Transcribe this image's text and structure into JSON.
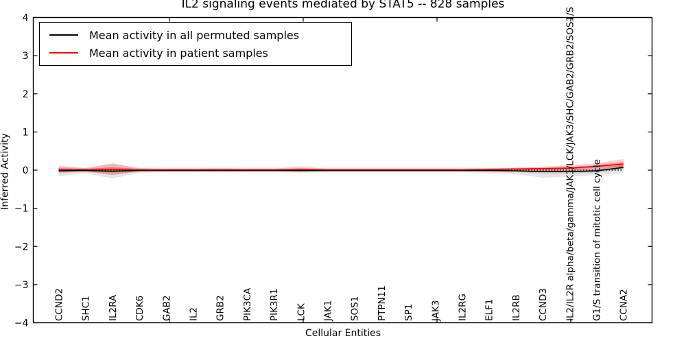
{
  "title": "IL2 signaling events mediated by STAT5 -- 828 samples",
  "axes": {
    "ylabel": "Inferred Activity",
    "xlabel": "Cellular Entities",
    "ytick_labels": [
      "4",
      "3",
      "2",
      "1",
      "0",
      "−1",
      "−2",
      "−3",
      "−4"
    ]
  },
  "legend": {
    "items": [
      {
        "label": "Mean activity in all permuted samples",
        "color": "#000000"
      },
      {
        "label": "Mean activity in patient samples",
        "color": "#ff0000"
      }
    ]
  },
  "chart_data": {
    "type": "line",
    "title": "IL2 signaling events mediated by STAT5 -- 828 samples",
    "xlabel": "Cellular Entities",
    "ylabel": "Inferred Activity",
    "ylim": [
      -4,
      4
    ],
    "yticks": [
      4,
      3,
      2,
      1,
      0,
      -1,
      -2,
      -3,
      -4
    ],
    "grid": false,
    "legend_position": "upper left",
    "zero_line": {
      "y": 0,
      "style": "dotted",
      "color": "#000000"
    },
    "categories": [
      "CCND2",
      "SHC1",
      "IL2RA",
      "CDK6",
      "GAB2",
      "IL2",
      "GRB2",
      "PIK3CA",
      "PIK3R1",
      "LCK",
      "JAK1",
      "SOS1",
      "PTPN11",
      "SP1",
      "JAK3",
      "IL2RG",
      "ELF1",
      "IL2RB",
      "CCND3",
      "IL2/IL2R alpha/beta/gamma/JAK1/LCK/JAK3/SHC/GAB2/GRB2/SOS1/S",
      "G1/S transition of mitotic cell cycle",
      "CCNA2"
    ],
    "series": [
      {
        "name": "Mean activity in all permuted samples",
        "color": "#000000",
        "band_color": "#000000",
        "values": [
          -0.02,
          -0.01,
          -0.03,
          -0.01,
          -0.01,
          -0.01,
          -0.01,
          -0.01,
          -0.01,
          -0.01,
          -0.01,
          -0.01,
          -0.01,
          -0.01,
          -0.01,
          -0.01,
          -0.01,
          -0.02,
          -0.04,
          -0.04,
          -0.02,
          0.07
        ],
        "band_outer_upper": [
          0.12,
          0.06,
          0.18,
          0.05,
          0.04,
          0.04,
          0.04,
          0.04,
          0.04,
          0.04,
          0.04,
          0.04,
          0.04,
          0.04,
          0.04,
          0.04,
          0.05,
          0.06,
          0.08,
          0.09,
          0.1,
          0.18
        ],
        "band_outer_lower": [
          -0.16,
          -0.08,
          -0.22,
          -0.07,
          -0.06,
          -0.06,
          -0.06,
          -0.06,
          -0.06,
          -0.06,
          -0.06,
          -0.06,
          -0.06,
          -0.06,
          -0.06,
          -0.06,
          -0.08,
          -0.11,
          -0.2,
          -0.17,
          -0.13,
          -0.08
        ],
        "band_inner_upper": [
          0.04,
          0.02,
          0.07,
          0.02,
          0.01,
          0.01,
          0.01,
          0.01,
          0.01,
          0.01,
          0.01,
          0.01,
          0.01,
          0.01,
          0.01,
          0.01,
          0.02,
          0.02,
          0.02,
          0.02,
          0.03,
          0.12
        ],
        "band_inner_lower": [
          -0.08,
          -0.04,
          -0.12,
          -0.04,
          -0.03,
          -0.03,
          -0.03,
          -0.03,
          -0.03,
          -0.03,
          -0.03,
          -0.03,
          -0.03,
          -0.03,
          -0.03,
          -0.03,
          -0.04,
          -0.05,
          -0.09,
          -0.09,
          -0.07,
          0.02
        ]
      },
      {
        "name": "Mean activity in patient samples",
        "color": "#ff0000",
        "band_color": "#ff0000",
        "values": [
          0.02,
          0.02,
          0.02,
          0.01,
          0.01,
          0.01,
          0.01,
          0.01,
          0.01,
          0.02,
          0.01,
          0.01,
          0.01,
          0.01,
          0.01,
          0.01,
          0.02,
          0.03,
          0.04,
          0.05,
          0.1,
          0.16
        ],
        "band_outer_upper": [
          0.09,
          0.05,
          0.17,
          0.05,
          0.04,
          0.04,
          0.05,
          0.04,
          0.04,
          0.09,
          0.04,
          0.04,
          0.04,
          0.04,
          0.04,
          0.04,
          0.05,
          0.07,
          0.09,
          0.13,
          0.18,
          0.29
        ],
        "band_outer_lower": [
          -0.06,
          -0.02,
          -0.13,
          -0.02,
          -0.02,
          -0.02,
          -0.02,
          -0.02,
          -0.02,
          -0.06,
          -0.02,
          -0.02,
          -0.02,
          -0.02,
          -0.02,
          -0.02,
          -0.02,
          -0.02,
          -0.02,
          -0.02,
          0.01,
          0.03
        ],
        "band_inner_upper": [
          0.05,
          0.03,
          0.08,
          0.03,
          0.02,
          0.02,
          0.03,
          0.02,
          0.02,
          0.05,
          0.02,
          0.02,
          0.02,
          0.02,
          0.02,
          0.02,
          0.03,
          0.04,
          0.06,
          0.08,
          0.13,
          0.22
        ],
        "band_inner_lower": [
          -0.02,
          -0.01,
          -0.05,
          -0.01,
          -0.01,
          -0.01,
          -0.01,
          -0.01,
          -0.01,
          -0.03,
          -0.01,
          -0.01,
          -0.01,
          -0.01,
          -0.01,
          -0.01,
          -0.01,
          0.0,
          0.01,
          0.02,
          0.06,
          0.09
        ]
      }
    ]
  }
}
